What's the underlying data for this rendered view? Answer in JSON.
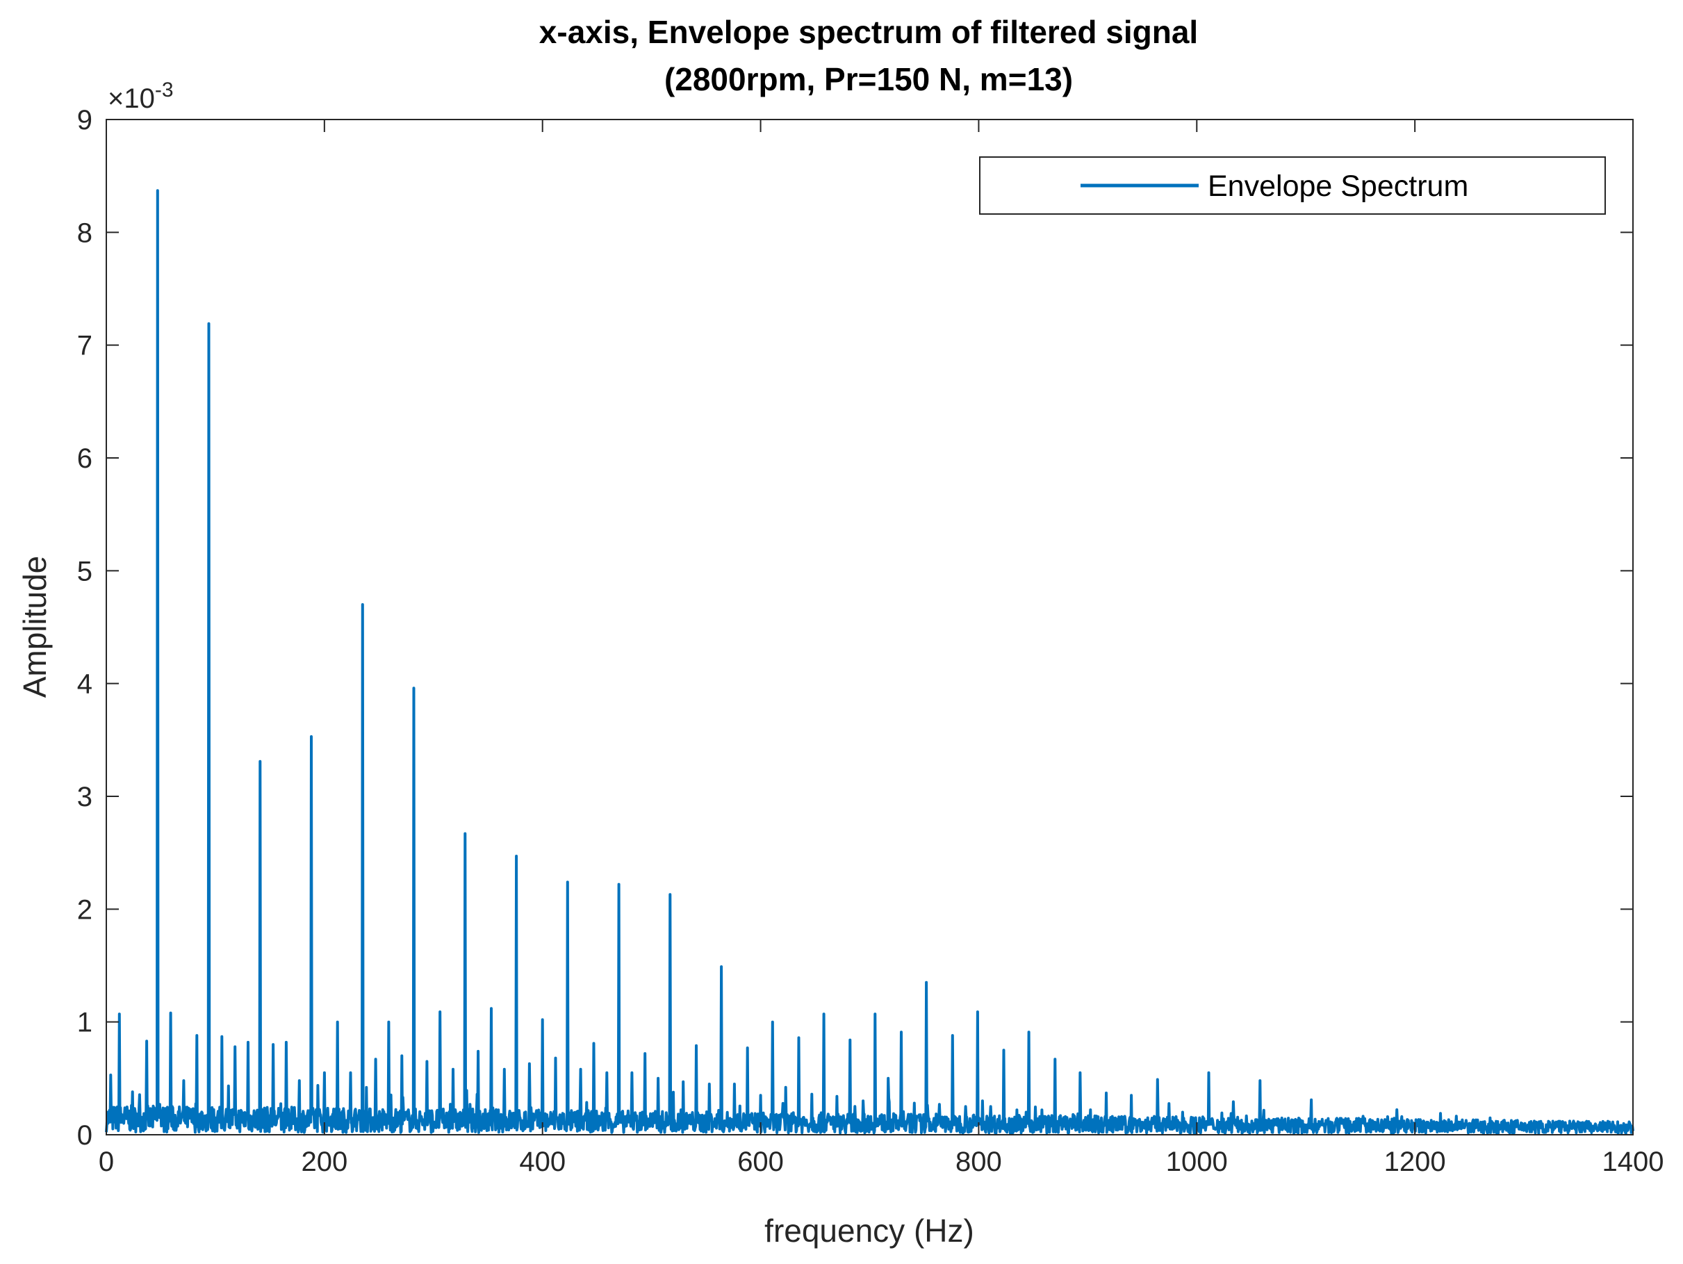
{
  "chart_data": {
    "type": "line",
    "title": "x-axis, Envelope spectrum of filtered signal",
    "subtitle": "(2800rpm, Pr=150 N, m=13)",
    "xlabel": "frequency (Hz)",
    "ylabel": "Amplitude",
    "y_exponent_label": "×10",
    "y_exponent_power": "-3",
    "xlim": [
      0,
      1400
    ],
    "ylim": [
      0,
      9
    ],
    "y_unit_scale": 0.001,
    "xticks": [
      0,
      200,
      400,
      600,
      800,
      1000,
      1200,
      1400
    ],
    "xtick_labels": [
      "0",
      "200",
      "400",
      "600",
      "800",
      "1000",
      "1200",
      "1400"
    ],
    "yticks": [
      0,
      1,
      2,
      3,
      4,
      5,
      6,
      7,
      8,
      9
    ],
    "ytick_labels": [
      "0",
      "1",
      "2",
      "3",
      "4",
      "5",
      "6",
      "7",
      "8",
      "9"
    ],
    "grid": false,
    "legend_position": "top-right",
    "series": [
      {
        "name": "Envelope Spectrum",
        "color": "#0072BD",
        "baseline": 0.15,
        "peaks": {
          "x": [
            4,
            12,
            24,
            37,
            47,
            59,
            71,
            83,
            94,
            106,
            118,
            130,
            141,
            153,
            165,
            177,
            188,
            200,
            212,
            224,
            235,
            247,
            259,
            271,
            282,
            294,
            306,
            318,
            329,
            341,
            353,
            365,
            376,
            388,
            400,
            412,
            423,
            435,
            447,
            459,
            470,
            482,
            494,
            506,
            517,
            529,
            541,
            553,
            564,
            576,
            588,
            600,
            611,
            623,
            635,
            647,
            658,
            670,
            682,
            694,
            705,
            717,
            729,
            741,
            752,
            764,
            776,
            788,
            799,
            811,
            823,
            835,
            846,
            858,
            870,
            893,
            917,
            940,
            964,
            987,
            1011,
            1034,
            1058,
            1081,
            1105,
            1128,
            1152,
            1175,
            1199,
            1222,
            1246,
            1269,
            1293,
            1316,
            1340,
            1363,
            1387
          ],
          "y": [
            0.53,
            1.07,
            0.38,
            0.83,
            8.37,
            1.08,
            0.48,
            0.88,
            7.19,
            0.87,
            0.78,
            0.82,
            3.31,
            0.8,
            0.82,
            0.48,
            3.53,
            0.55,
            1.0,
            0.55,
            4.7,
            0.67,
            1.0,
            0.7,
            3.96,
            0.65,
            1.09,
            0.58,
            2.67,
            0.74,
            1.12,
            0.58,
            2.47,
            0.63,
            1.02,
            0.68,
            2.24,
            0.58,
            0.81,
            0.55,
            2.22,
            0.55,
            0.72,
            0.5,
            2.13,
            0.47,
            0.79,
            0.45,
            1.49,
            0.45,
            0.77,
            0.35,
            1.0,
            0.42,
            0.86,
            0.36,
            1.07,
            0.34,
            0.84,
            0.3,
            1.07,
            0.5,
            0.91,
            0.28,
            1.35,
            0.27,
            0.88,
            0.25,
            1.09,
            0.25,
            0.75,
            0.22,
            0.91,
            0.22,
            0.67,
            0.55,
            0.37,
            0.35,
            0.49,
            0.2,
            0.55,
            0.17,
            0.48,
            0.14,
            0.31,
            0.14,
            0.12,
            0.16,
            0.08,
            0.1,
            0.08,
            0.15,
            0.07,
            0.06,
            0.08,
            0.06,
            0.08
          ]
        }
      }
    ]
  }
}
